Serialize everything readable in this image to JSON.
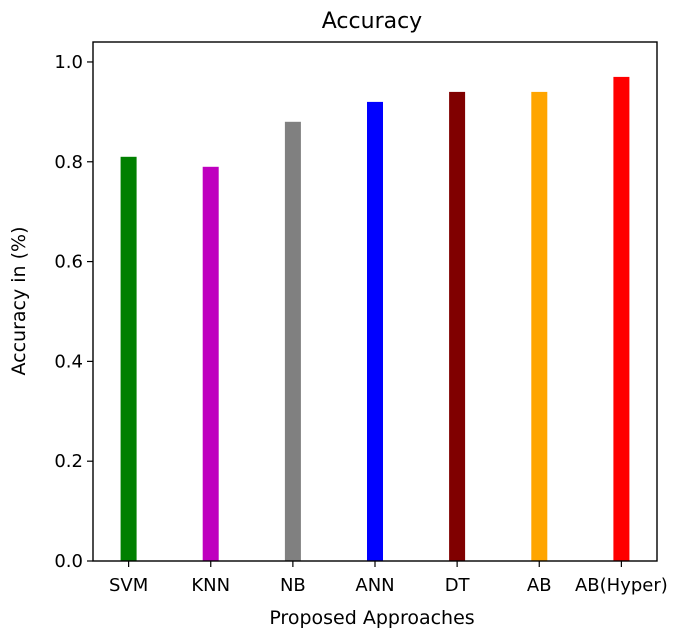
{
  "chart_data": {
    "type": "bar",
    "title": "Accuracy",
    "xlabel": "Proposed Approaches",
    "ylabel": "Accuracy in (%)",
    "categories": [
      "SVM",
      "KNN",
      "NB",
      "ANN",
      "DT",
      "AB",
      "AB(Hyper)"
    ],
    "values": [
      0.81,
      0.79,
      0.88,
      0.92,
      0.94,
      0.94,
      0.97
    ],
    "colors": [
      "#008000",
      "#bf00bf",
      "#808080",
      "#0000ff",
      "#800000",
      "#ffa500",
      "#ff0000"
    ],
    "ylim": [
      0,
      1.04
    ],
    "yticks": [
      "0.0",
      "0.2",
      "0.4",
      "0.6",
      "0.8",
      "1.0"
    ],
    "grid": false,
    "legend": "none"
  }
}
